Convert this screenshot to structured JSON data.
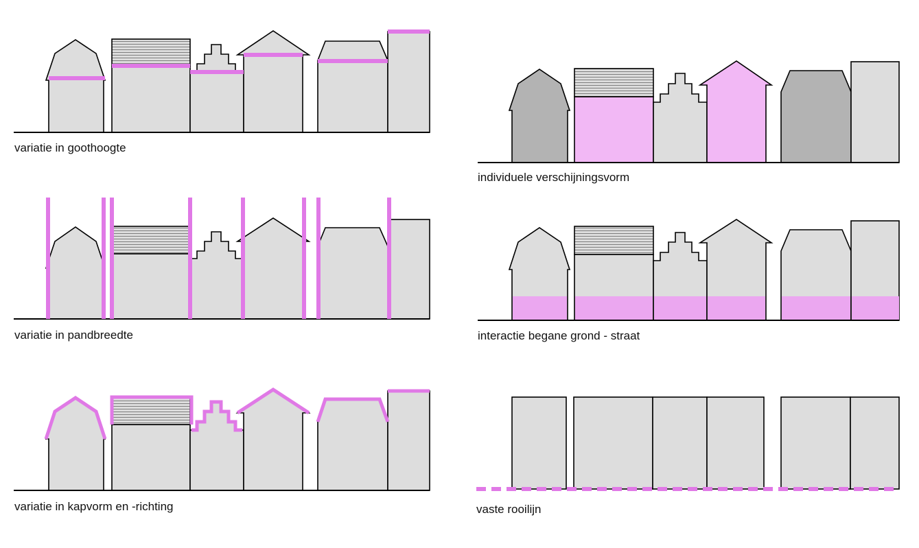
{
  "panels": {
    "goothoogte": {
      "caption": "variatie in goothoogte"
    },
    "pandbreedte": {
      "caption": "variatie in pandbreedte"
    },
    "kapvorm": {
      "caption": "variatie in kapvorm en -richting"
    },
    "verschijningsvorm": {
      "caption": "individuele verschijningsvorm"
    },
    "interactie": {
      "caption": "interactie begane grond - straat"
    },
    "rooilijn": {
      "caption": "vaste rooilijn"
    }
  },
  "colors": {
    "building_fill": "#dddddd",
    "building_dark": "#b3b3b3",
    "highlight": "#e079e6",
    "highlight_fill": "#f2b8f5",
    "ground_band": "#eba7f0",
    "outline": "#000000"
  }
}
